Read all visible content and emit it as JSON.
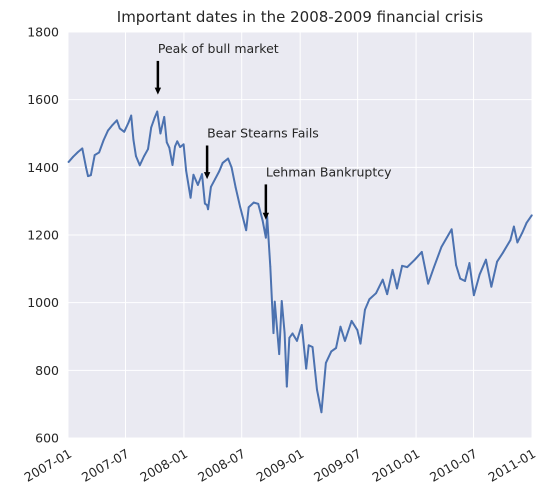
{
  "chart_data": {
    "type": "line",
    "title": "Important dates in the 2008-2009 financial crisis",
    "xlabel": "",
    "ylabel": "",
    "xlim": [
      "2007-01-01",
      "2011-01-01"
    ],
    "ylim": [
      600,
      1800
    ],
    "grid": true,
    "legend": "none",
    "x_ticks": [
      "2007-01",
      "2007-07",
      "2008-01",
      "2008-07",
      "2009-01",
      "2009-07",
      "2010-01",
      "2010-07",
      "2011-01"
    ],
    "y_ticks": [
      "600",
      "800",
      "1000",
      "1200",
      "1400",
      "1600",
      "1800"
    ],
    "series": [
      {
        "color": "#4c72b0",
        "points": [
          [
            "2007-01-03",
            1416
          ],
          [
            "2007-01-17",
            1431
          ],
          [
            "2007-02-01",
            1445
          ],
          [
            "2007-02-15",
            1456
          ],
          [
            "2007-02-27",
            1399
          ],
          [
            "2007-03-05",
            1374
          ],
          [
            "2007-03-14",
            1377
          ],
          [
            "2007-03-26",
            1436
          ],
          [
            "2007-04-09",
            1444
          ],
          [
            "2007-04-23",
            1480
          ],
          [
            "2007-05-07",
            1509
          ],
          [
            "2007-05-21",
            1525
          ],
          [
            "2007-06-04",
            1539
          ],
          [
            "2007-06-13",
            1515
          ],
          [
            "2007-06-27",
            1505
          ],
          [
            "2007-07-10",
            1531
          ],
          [
            "2007-07-19",
            1553
          ],
          [
            "2007-07-26",
            1482
          ],
          [
            "2007-08-03",
            1433
          ],
          [
            "2007-08-15",
            1406
          ],
          [
            "2007-08-28",
            1432
          ],
          [
            "2007-09-10",
            1454
          ],
          [
            "2007-09-20",
            1518
          ],
          [
            "2007-10-01",
            1547
          ],
          [
            "2007-10-09",
            1565
          ],
          [
            "2007-10-19",
            1500
          ],
          [
            "2007-10-31",
            1549
          ],
          [
            "2007-11-08",
            1474
          ],
          [
            "2007-11-16",
            1458
          ],
          [
            "2007-11-26",
            1407
          ],
          [
            "2007-12-04",
            1462
          ],
          [
            "2007-12-11",
            1477
          ],
          [
            "2007-12-20",
            1460
          ],
          [
            "2007-12-31",
            1468
          ],
          [
            "2008-01-08",
            1390
          ],
          [
            "2008-01-22",
            1310
          ],
          [
            "2008-01-31",
            1378
          ],
          [
            "2008-02-14",
            1348
          ],
          [
            "2008-02-27",
            1380
          ],
          [
            "2008-03-07",
            1293
          ],
          [
            "2008-03-14",
            1288
          ],
          [
            "2008-03-17",
            1276
          ],
          [
            "2008-03-26",
            1342
          ],
          [
            "2008-04-08",
            1365
          ],
          [
            "2008-04-21",
            1388
          ],
          [
            "2008-05-02",
            1413
          ],
          [
            "2008-05-19",
            1426
          ],
          [
            "2008-05-30",
            1400
          ],
          [
            "2008-06-12",
            1340
          ],
          [
            "2008-06-26",
            1283
          ],
          [
            "2008-07-15",
            1214
          ],
          [
            "2008-07-23",
            1282
          ],
          [
            "2008-08-08",
            1296
          ],
          [
            "2008-08-22",
            1292
          ],
          [
            "2008-09-05",
            1242
          ],
          [
            "2008-09-15",
            1192
          ],
          [
            "2008-09-19",
            1255
          ],
          [
            "2008-09-29",
            1106
          ],
          [
            "2008-10-09",
            910
          ],
          [
            "2008-10-13",
            1003
          ],
          [
            "2008-10-27",
            848
          ],
          [
            "2008-11-04",
            1005
          ],
          [
            "2008-11-13",
            911
          ],
          [
            "2008-11-20",
            752
          ],
          [
            "2008-11-28",
            896
          ],
          [
            "2008-12-08",
            909
          ],
          [
            "2008-12-22",
            887
          ],
          [
            "2009-01-06",
            934
          ],
          [
            "2009-01-20",
            805
          ],
          [
            "2009-01-28",
            874
          ],
          [
            "2009-02-09",
            869
          ],
          [
            "2009-02-23",
            743
          ],
          [
            "2009-03-09",
            676
          ],
          [
            "2009-03-23",
            822
          ],
          [
            "2009-04-09",
            856
          ],
          [
            "2009-04-24",
            866
          ],
          [
            "2009-05-08",
            929
          ],
          [
            "2009-05-22",
            887
          ],
          [
            "2009-06-12",
            946
          ],
          [
            "2009-06-30",
            919
          ],
          [
            "2009-07-10",
            879
          ],
          [
            "2009-07-24",
            979
          ],
          [
            "2009-08-07",
            1010
          ],
          [
            "2009-08-28",
            1028
          ],
          [
            "2009-09-18",
            1068
          ],
          [
            "2009-10-02",
            1025
          ],
          [
            "2009-10-19",
            1097
          ],
          [
            "2009-11-02",
            1042
          ],
          [
            "2009-11-18",
            1109
          ],
          [
            "2009-12-04",
            1105
          ],
          [
            "2009-12-28",
            1127
          ],
          [
            "2010-01-19",
            1150
          ],
          [
            "2010-02-08",
            1056
          ],
          [
            "2010-02-26",
            1104
          ],
          [
            "2010-03-22",
            1165
          ],
          [
            "2010-04-23",
            1217
          ],
          [
            "2010-05-07",
            1111
          ],
          [
            "2010-05-20",
            1071
          ],
          [
            "2010-06-04",
            1064
          ],
          [
            "2010-06-18",
            1117
          ],
          [
            "2010-07-02",
            1022
          ],
          [
            "2010-07-20",
            1083
          ],
          [
            "2010-08-09",
            1127
          ],
          [
            "2010-08-26",
            1047
          ],
          [
            "2010-09-13",
            1121
          ],
          [
            "2010-10-01",
            1147
          ],
          [
            "2010-10-25",
            1185
          ],
          [
            "2010-11-05",
            1225
          ],
          [
            "2010-11-16",
            1178
          ],
          [
            "2010-12-01",
            1206
          ],
          [
            "2010-12-15",
            1236
          ],
          [
            "2010-12-31",
            1258
          ]
        ]
      }
    ],
    "annotations": [
      {
        "text": "Peak of bull market",
        "date": "2007-10-11",
        "value": 1615,
        "text_value": 1750
      },
      {
        "text": "Bear Stearns Fails",
        "date": "2008-03-14",
        "value": 1365,
        "text_value": 1500
      },
      {
        "text": "Lehman Bankruptcy",
        "date": "2008-09-15",
        "value": 1245,
        "text_value": 1385
      }
    ],
    "colors": {
      "plot_background": "#eaeaf2",
      "grid": "#ffffff",
      "line": "#4c72b0",
      "arrow": "#000000",
      "text": "#262626"
    }
  }
}
